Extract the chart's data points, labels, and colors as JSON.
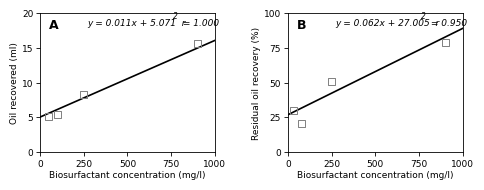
{
  "panel_A": {
    "label": "A",
    "scatter_x": [
      50,
      100,
      250,
      900
    ],
    "scatter_y": [
      5.1,
      5.4,
      8.3,
      15.6
    ],
    "slope": 0.011,
    "intercept": 5.071,
    "r2": 1.0,
    "eq_main": "y = 0.011x + 5.071  r",
    "eq_super": "2",
    "eq_tail": " = 1.000",
    "xlim": [
      0,
      1000
    ],
    "ylim": [
      0,
      20
    ],
    "xticks": [
      0,
      250,
      500,
      750,
      1000
    ],
    "yticks": [
      0,
      5,
      10,
      15,
      20
    ],
    "xlabel": "Biosurfactant concentration (mg/l)",
    "ylabel": "Oil recovered (ml)"
  },
  "panel_B": {
    "label": "B",
    "scatter_x": [
      30,
      75,
      250,
      900
    ],
    "scatter_y": [
      30,
      21,
      51,
      79
    ],
    "slope": 0.062,
    "intercept": 27.005,
    "r2": 0.95,
    "eq_main": "y = 0.062x + 27.005  r",
    "eq_super": "2",
    "eq_tail": " = 0.950",
    "xlim": [
      0,
      1000
    ],
    "ylim": [
      0,
      100
    ],
    "xticks": [
      0,
      250,
      500,
      750,
      1000
    ],
    "yticks": [
      0,
      25,
      50,
      75,
      100
    ],
    "xlabel": "Biosurfactant concentration (mg/l)",
    "ylabel": "Residual oil recovery (%)"
  },
  "line_color": "#000000",
  "marker_facecolor": "none",
  "marker_edgecolor": "#808080",
  "marker_size": 5,
  "line_width": 1.2,
  "bg_color": "#ffffff",
  "font_size_tick": 6.5,
  "font_size_eq": 6.5,
  "font_size_panel": 9,
  "font_size_axis": 6.5
}
